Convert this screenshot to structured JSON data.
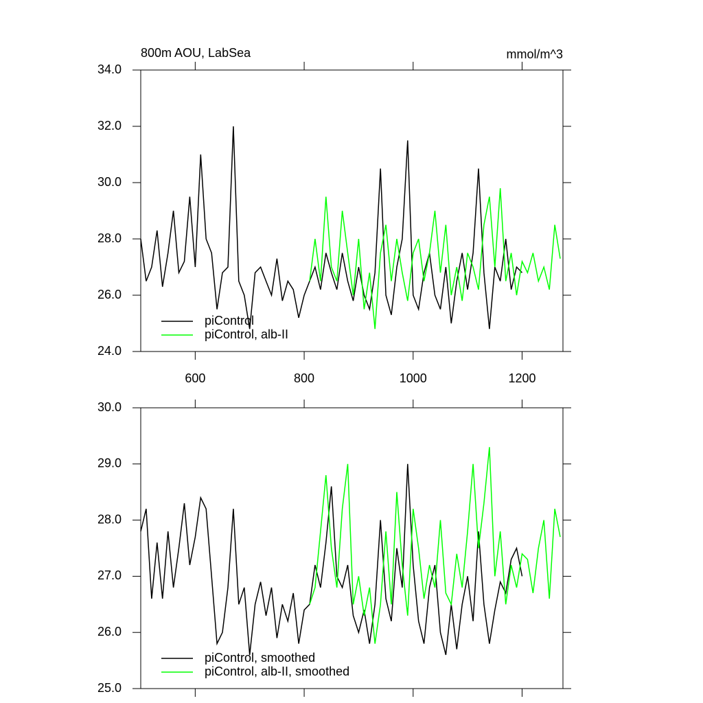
{
  "chart_data": [
    {
      "type": "line",
      "title": "800m AOU, LabSea",
      "units": "mmol/m^3",
      "x": [
        500,
        510,
        520,
        530,
        540,
        550,
        560,
        570,
        580,
        590,
        600,
        610,
        620,
        630,
        640,
        650,
        660,
        670,
        680,
        690,
        700,
        710,
        720,
        730,
        740,
        750,
        760,
        770,
        780,
        790,
        800,
        810,
        820,
        830,
        840,
        850,
        860,
        870,
        880,
        890,
        900,
        910,
        920,
        930,
        940,
        950,
        960,
        970,
        980,
        990,
        1000,
        1010,
        1020,
        1030,
        1040,
        1050,
        1060,
        1070,
        1080,
        1090,
        1100,
        1110,
        1120,
        1130,
        1140,
        1150,
        1160,
        1170,
        1180,
        1190,
        1200,
        1210,
        1220,
        1230,
        1240,
        1250,
        1260,
        1270
      ],
      "series": [
        {
          "name": "piControl",
          "color": "#000000",
          "values": [
            28,
            26.5,
            27,
            28.3,
            26.3,
            27.5,
            29,
            26.8,
            27.2,
            29.5,
            27,
            31,
            28,
            27.5,
            25.5,
            26.8,
            27,
            32,
            26.5,
            26,
            24.8,
            26.8,
            27,
            26.5,
            26,
            27.3,
            25.8,
            26.5,
            26.2,
            25.2,
            26,
            26.5,
            27,
            26.2,
            27.5,
            26.8,
            26.2,
            27.5,
            26.5,
            25.8,
            27,
            26,
            25.5,
            26.8,
            30.5,
            26,
            25.3,
            27,
            28,
            31.5,
            26,
            25.5,
            26.8,
            27.5,
            26,
            25.5,
            27,
            25,
            26.5,
            27.5,
            26.2,
            27.5,
            30.5,
            26.8,
            24.8,
            27,
            26.5,
            28,
            26.2,
            27,
            26.8,
            null,
            null,
            null,
            null,
            null,
            null,
            null
          ]
        },
        {
          "name": "piControl, alb-II",
          "color": "#00ff00",
          "values": [
            null,
            null,
            null,
            null,
            null,
            null,
            null,
            null,
            null,
            null,
            null,
            null,
            null,
            null,
            null,
            null,
            null,
            null,
            null,
            null,
            null,
            null,
            null,
            null,
            null,
            null,
            null,
            null,
            null,
            null,
            null,
            26.5,
            28,
            26.5,
            29.5,
            27,
            26.5,
            29,
            27.5,
            26,
            28,
            25.5,
            26.8,
            24.8,
            27.5,
            28.5,
            26.5,
            28,
            26.8,
            25.8,
            27.5,
            28,
            26.5,
            27.5,
            29,
            26.8,
            28.5,
            26,
            27,
            25.8,
            27.5,
            27,
            26.2,
            28.5,
            29.5,
            27,
            29.8,
            26.5,
            27.5,
            26,
            27.2,
            26.8,
            27.5,
            26.5,
            27,
            26.2,
            28.5,
            27.3
          ]
        }
      ],
      "xlim": [
        500,
        1275
      ],
      "xticks": [
        600,
        800,
        1000,
        1200
      ],
      "ylim": [
        24,
        34
      ],
      "yticks": [
        {
          "value": 24,
          "label": "24.0"
        },
        {
          "value": 26,
          "label": "26.0"
        },
        {
          "value": 28,
          "label": "28.0"
        },
        {
          "value": 30,
          "label": "30.0"
        },
        {
          "value": 32,
          "label": "32.0"
        },
        {
          "value": 34,
          "label": "34.0"
        }
      ],
      "legend": "lower left"
    },
    {
      "type": "line",
      "x": [
        500,
        510,
        520,
        530,
        540,
        550,
        560,
        570,
        580,
        590,
        600,
        610,
        620,
        630,
        640,
        650,
        660,
        670,
        680,
        690,
        700,
        710,
        720,
        730,
        740,
        750,
        760,
        770,
        780,
        790,
        800,
        810,
        820,
        830,
        840,
        850,
        860,
        870,
        880,
        890,
        900,
        910,
        920,
        930,
        940,
        950,
        960,
        970,
        980,
        990,
        1000,
        1010,
        1020,
        1030,
        1040,
        1050,
        1060,
        1070,
        1080,
        1090,
        1100,
        1110,
        1120,
        1130,
        1140,
        1150,
        1160,
        1170,
        1180,
        1190,
        1200,
        1210,
        1220,
        1230,
        1240,
        1250,
        1260,
        1270
      ],
      "series": [
        {
          "name": "piControl, smoothed",
          "color": "#000000",
          "values": [
            27.8,
            28.2,
            26.6,
            27.6,
            26.6,
            27.8,
            26.8,
            27.5,
            28.3,
            27.2,
            27.7,
            28.4,
            28.2,
            27,
            25.8,
            26,
            26.8,
            28.2,
            26.5,
            26.8,
            25.6,
            26.5,
            26.9,
            26.3,
            26.8,
            25.9,
            26.5,
            26.2,
            26.7,
            25.8,
            26.4,
            26.5,
            27.2,
            26.8,
            27.6,
            28.6,
            27,
            26.8,
            27.2,
            26.3,
            26,
            26.4,
            25.8,
            26.5,
            28,
            26.6,
            26.2,
            27.5,
            26.8,
            29,
            27.2,
            26.2,
            25.8,
            26.8,
            27.2,
            26,
            25.6,
            26.5,
            25.7,
            26.5,
            27,
            26.2,
            27.8,
            26.5,
            25.8,
            26.4,
            26.9,
            26.7,
            27.3,
            27.5,
            27,
            null,
            null,
            null,
            null,
            null,
            null,
            null
          ]
        },
        {
          "name": "piControl, alb-II, smoothed",
          "color": "#00ff00",
          "values": [
            null,
            null,
            null,
            null,
            null,
            null,
            null,
            null,
            null,
            null,
            null,
            null,
            null,
            null,
            null,
            null,
            null,
            null,
            null,
            null,
            null,
            null,
            null,
            null,
            null,
            null,
            null,
            null,
            null,
            null,
            null,
            26.5,
            26.8,
            27.8,
            28.8,
            27.5,
            26.8,
            28.2,
            29,
            26.5,
            27,
            26.3,
            26.8,
            25.8,
            26.5,
            27.8,
            26.5,
            28.5,
            27.2,
            26.3,
            28.2,
            27.5,
            26.6,
            27.2,
            26.8,
            28,
            26.7,
            26.5,
            27.4,
            26.8,
            27.8,
            29,
            27.5,
            28.3,
            29.3,
            27,
            27.8,
            26.5,
            27.2,
            26.8,
            27.4,
            27.3,
            26.7,
            27.5,
            28,
            26.6,
            28.2,
            27.7
          ]
        }
      ],
      "xlim": [
        500,
        1275
      ],
      "ylim": [
        25,
        30
      ],
      "yticks": [
        {
          "value": 25,
          "label": "25.0"
        },
        {
          "value": 26,
          "label": "26.0"
        },
        {
          "value": 27,
          "label": "27.0"
        },
        {
          "value": 28,
          "label": "28.0"
        },
        {
          "value": 29,
          "label": "29.0"
        },
        {
          "value": 30,
          "label": "30.0"
        }
      ],
      "legend": "lower left"
    }
  ]
}
